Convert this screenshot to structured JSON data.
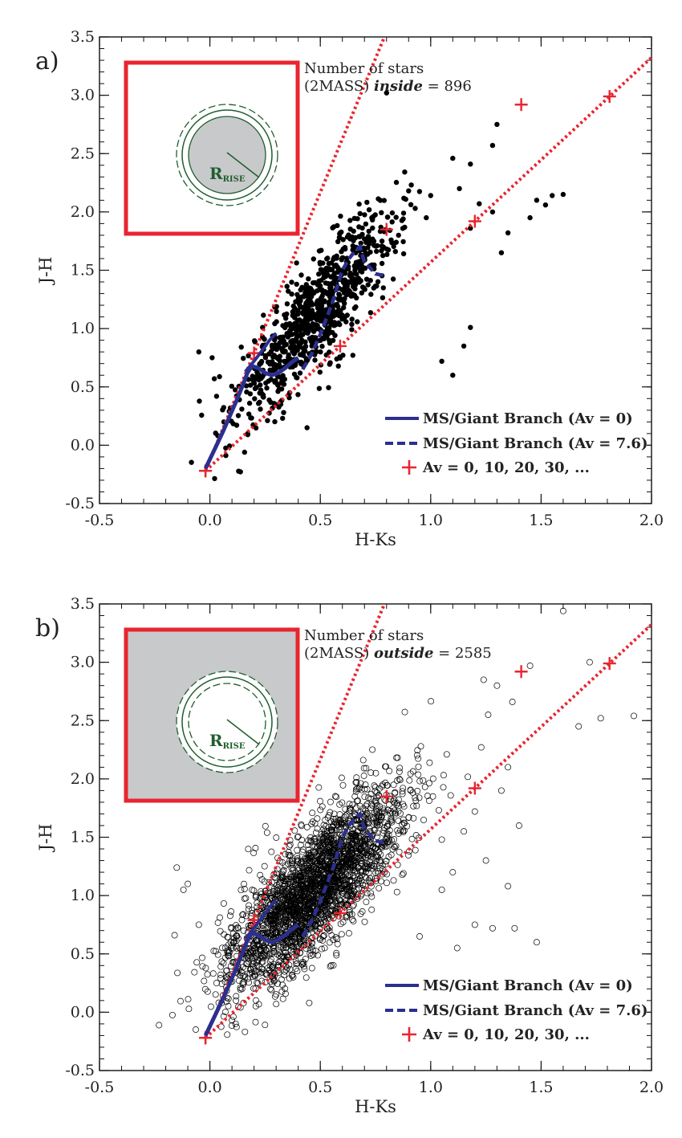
{
  "chart_data": [
    {
      "type": "scatter",
      "panel_label": "a)",
      "xlabel": "H-Ks",
      "ylabel": "J-H",
      "xlim": [
        -0.5,
        2.0
      ],
      "ylim": [
        -0.5,
        3.5
      ],
      "xticks": [
        "-0.5",
        "0.0",
        "0.5",
        "1.0",
        "1.5",
        "2.0"
      ],
      "yticks": [
        "-0.5",
        "0.0",
        "0.5",
        "1.0",
        "1.5",
        "2.0",
        "2.5",
        "3.0",
        "3.5"
      ],
      "count_text_line1": "Number of stars",
      "count_text_prefix": "(2MASS) ",
      "count_text_region": "inside",
      "count_text_suffix": " =  896",
      "star_count": 896,
      "marker": "filled",
      "inset": {
        "shaded": "circle",
        "label_main": "R",
        "label_sub": "RISE"
      },
      "legend": [
        "MS/Giant Branch (Av = 0)",
        "MS/Giant Branch (Av = 7.6)",
        "Av = 0, 10, 20, 30, ..."
      ],
      "reddening_lines": [
        {
          "start": [
            -0.02,
            -0.22
          ],
          "markers": [
            [
              0.2,
              0.79
            ],
            [
              0.8,
              1.85
            ],
            [
              1.41,
              2.92
            ]
          ]
        },
        {
          "start": [
            -0.02,
            -0.22
          ],
          "markers": [
            [
              0.59,
              0.85
            ],
            [
              1.2,
              1.92
            ],
            [
              1.81,
              2.99
            ]
          ]
        }
      ],
      "ms_branch_av0": [
        [
          -0.02,
          -0.2
        ],
        [
          0.0,
          -0.12
        ],
        [
          0.03,
          0.0
        ],
        [
          0.06,
          0.12
        ],
        [
          0.09,
          0.25
        ],
        [
          0.12,
          0.38
        ],
        [
          0.15,
          0.52
        ],
        [
          0.17,
          0.62
        ],
        [
          0.19,
          0.68
        ],
        [
          0.22,
          0.66
        ],
        [
          0.25,
          0.62
        ],
        [
          0.28,
          0.6
        ],
        [
          0.31,
          0.62
        ],
        [
          0.34,
          0.66
        ],
        [
          0.37,
          0.71
        ],
        [
          0.4,
          0.75
        ]
      ],
      "ms_branch_av0_upper": [
        [
          0.16,
          0.63
        ],
        [
          0.2,
          0.72
        ],
        [
          0.24,
          0.82
        ],
        [
          0.27,
          0.9
        ],
        [
          0.3,
          0.96
        ]
      ],
      "ms_branch_av76": [
        [
          0.42,
          0.65
        ],
        [
          0.46,
          0.78
        ],
        [
          0.5,
          0.95
        ],
        [
          0.53,
          1.1
        ],
        [
          0.56,
          1.25
        ],
        [
          0.58,
          1.38
        ],
        [
          0.6,
          1.5
        ],
        [
          0.63,
          1.6
        ],
        [
          0.66,
          1.67
        ],
        [
          0.68,
          1.7
        ],
        [
          0.7,
          1.57
        ],
        [
          0.72,
          1.53
        ],
        [
          0.75,
          1.47
        ],
        [
          0.8,
          1.45
        ]
      ],
      "outliers": [
        [
          0.8,
          3.02
        ],
        [
          1.1,
          2.46
        ],
        [
          1.18,
          2.41
        ],
        [
          1.13,
          2.2
        ],
        [
          1.3,
          2.75
        ],
        [
          1.28,
          2.57
        ],
        [
          1.55,
          2.14
        ],
        [
          1.6,
          2.15
        ],
        [
          1.48,
          2.1
        ],
        [
          1.28,
          2.0
        ],
        [
          1.22,
          2.07
        ],
        [
          1.35,
          1.82
        ],
        [
          1.32,
          1.65
        ],
        [
          1.52,
          2.06
        ],
        [
          1.45,
          1.95
        ],
        [
          1.18,
          1.86
        ],
        [
          1.05,
          0.72
        ],
        [
          1.1,
          0.6
        ],
        [
          1.15,
          0.85
        ],
        [
          1.18,
          1.01
        ],
        [
          0.44,
          0.15
        ],
        [
          -0.05,
          0.8
        ],
        [
          0.03,
          0.42
        ],
        [
          0.01,
          0.75
        ],
        [
          0.02,
          0.57
        ],
        [
          0.98,
          1.95
        ],
        [
          0.93,
          2.03
        ],
        [
          1.0,
          2.14
        ],
        [
          0.9,
          2.18
        ]
      ]
    },
    {
      "type": "scatter",
      "panel_label": "b)",
      "xlabel": "H-Ks",
      "ylabel": "J-H",
      "xlim": [
        -0.5,
        2.0
      ],
      "ylim": [
        -0.5,
        3.5
      ],
      "xticks": [
        "-0.5",
        "0.0",
        "0.5",
        "1.0",
        "1.5",
        "2.0"
      ],
      "yticks": [
        "-0.5",
        "0.0",
        "0.5",
        "1.0",
        "1.5",
        "2.0",
        "2.5",
        "3.0",
        "3.5"
      ],
      "count_text_line1": "Number of stars",
      "count_text_prefix": "(2MASS) ",
      "count_text_region": "outside",
      "count_text_suffix": " =  2585",
      "star_count": 2585,
      "marker": "open",
      "inset": {
        "shaded": "background",
        "label_main": "R",
        "label_sub": "RISE"
      },
      "legend": [
        "MS/Giant Branch (Av = 0)",
        "MS/Giant Branch (Av = 7.6)",
        "Av = 0, 10, 20, 30, ..."
      ],
      "reddening_lines": [
        {
          "start": [
            -0.02,
            -0.22
          ],
          "markers": [
            [
              0.2,
              0.79
            ],
            [
              0.8,
              1.85
            ],
            [
              1.41,
              2.92
            ]
          ]
        },
        {
          "start": [
            -0.02,
            -0.22
          ],
          "markers": [
            [
              0.59,
              0.85
            ],
            [
              1.2,
              1.92
            ],
            [
              1.81,
              2.99
            ]
          ]
        }
      ],
      "ms_branch_av0": [
        [
          -0.02,
          -0.2
        ],
        [
          0.0,
          -0.12
        ],
        [
          0.03,
          0.0
        ],
        [
          0.06,
          0.12
        ],
        [
          0.09,
          0.25
        ],
        [
          0.12,
          0.38
        ],
        [
          0.15,
          0.52
        ],
        [
          0.17,
          0.62
        ],
        [
          0.19,
          0.68
        ],
        [
          0.22,
          0.66
        ],
        [
          0.25,
          0.62
        ],
        [
          0.28,
          0.6
        ],
        [
          0.31,
          0.62
        ],
        [
          0.34,
          0.66
        ],
        [
          0.37,
          0.71
        ],
        [
          0.4,
          0.75
        ]
      ],
      "ms_branch_av0_upper": [
        [
          0.16,
          0.63
        ],
        [
          0.2,
          0.72
        ],
        [
          0.24,
          0.82
        ],
        [
          0.27,
          0.9
        ],
        [
          0.3,
          0.96
        ]
      ],
      "ms_branch_av76": [
        [
          0.42,
          0.65
        ],
        [
          0.46,
          0.78
        ],
        [
          0.5,
          0.95
        ],
        [
          0.53,
          1.1
        ],
        [
          0.56,
          1.25
        ],
        [
          0.58,
          1.38
        ],
        [
          0.6,
          1.5
        ],
        [
          0.63,
          1.6
        ],
        [
          0.66,
          1.67
        ],
        [
          0.68,
          1.7
        ],
        [
          0.7,
          1.57
        ],
        [
          0.72,
          1.53
        ],
        [
          0.75,
          1.47
        ],
        [
          0.8,
          1.45
        ]
      ],
      "outliers": [
        [
          1.6,
          3.44
        ],
        [
          1.45,
          2.97
        ],
        [
          1.72,
          3.0
        ],
        [
          1.92,
          2.54
        ],
        [
          1.77,
          2.52
        ],
        [
          1.67,
          2.45
        ],
        [
          1.37,
          2.66
        ],
        [
          1.26,
          2.55
        ],
        [
          1.24,
          2.85
        ],
        [
          1.3,
          2.8
        ],
        [
          1.35,
          2.1
        ],
        [
          1.32,
          1.9
        ],
        [
          1.48,
          0.6
        ],
        [
          1.38,
          0.72
        ],
        [
          1.35,
          1.08
        ],
        [
          1.28,
          0.72
        ],
        [
          1.2,
          0.75
        ],
        [
          1.12,
          0.55
        ],
        [
          0.97,
          0.3
        ],
        [
          0.93,
          0.15
        ],
        [
          0.81,
          0.28
        ],
        [
          0.95,
          0.65
        ],
        [
          -0.16,
          0.66
        ],
        [
          -0.15,
          1.24
        ],
        [
          -0.1,
          1.1
        ],
        [
          -0.12,
          1.05
        ],
        [
          -0.05,
          0.75
        ],
        [
          0.45,
          0.08
        ],
        [
          0.3,
          0.07
        ],
        [
          0.03,
          0.25
        ],
        [
          0.84,
          0.22
        ],
        [
          1.05,
          1.05
        ],
        [
          1.1,
          1.2
        ],
        [
          1.25,
          1.3
        ],
        [
          1.4,
          1.6
        ],
        [
          1.2,
          1.72
        ],
        [
          1.15,
          1.55
        ],
        [
          1.05,
          1.48
        ]
      ]
    }
  ]
}
